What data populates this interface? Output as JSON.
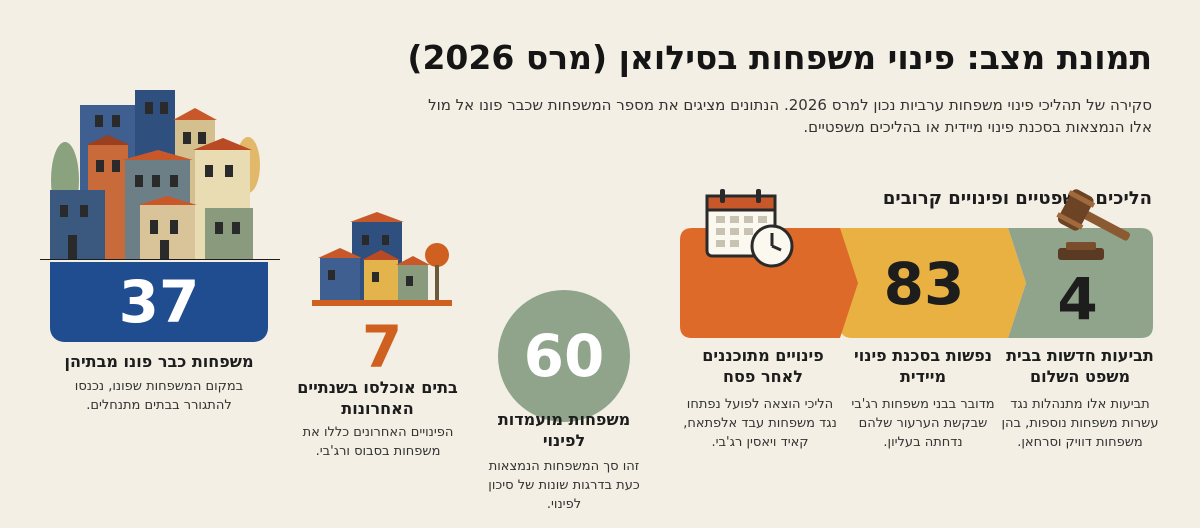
{
  "header": {
    "title": "תמונת מצב: פינוי משפחות בסילואן (מרס 2026)",
    "subtitle": "סקירה של תהליכי פינוי משפחות ערביות נכון למרס 2026. הנתונים מציגים את מספר המשפחות שכבר פונו אל מול אלו הנמצאות בסכנת פינוי מיידית או בהליכים משפטיים."
  },
  "legal_section": {
    "title": "הליכים משפטיים ופינויים קרובים"
  },
  "stats": {
    "evicted": {
      "number": "37",
      "label": "משפחות כבר פונו מבתיהן",
      "desc": "במקום המשפחות שפונו, נכנסו להתגורר בבתים מתנחלים.",
      "color": "#1f4d8f"
    },
    "houses": {
      "number": "7",
      "label": "בתים אוכלסו בשנתיים האחרונות",
      "desc": "הפינויים האחרונים כללו את משפחות בסבוס ורג'בי.",
      "color": "#d0601f"
    },
    "candidates": {
      "number": "60",
      "label": "משפחות מועמדות לפינוי",
      "desc": "זהו סך המשפחות הנמצאות כעת בדרגות שונות של סיכון לפינוי.",
      "color": "#8fa48a"
    },
    "planned": {
      "label": "פינויים מתוכננים לאחר פסח",
      "desc": "הליכי הוצאה לפועל נפתחו נגד משפחות עבד אלפתאח, קאיד ויאסין רג'בי.",
      "color": "#de6a2a"
    },
    "at_risk": {
      "number": "83",
      "label": "נפשות בסכנת פינוי מיידית",
      "desc": "מדובר בבני משפחות רג'בי שבקשת הערעור שלהם נדחתה בעליון.",
      "color": "#e9b142"
    },
    "lawsuits": {
      "number": "4",
      "label": "תביעות חדשות בבית משפט השלום",
      "desc": "תביעות אלו מתנהלות נגד עשרות משפחות נוספות, בהן משפחות דוויק וסרחאן.",
      "color": "#8fa48a"
    }
  },
  "icons": [
    "buildings-icon",
    "houses-icon",
    "tree-icon",
    "calendar-icon",
    "clock-icon",
    "gavel-icon"
  ]
}
